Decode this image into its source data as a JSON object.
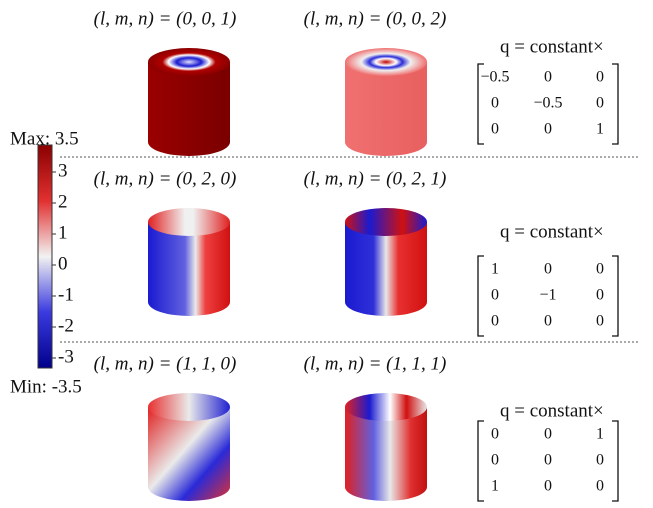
{
  "colorbar": {
    "max_label": "Max: 3.5",
    "min_label": "Min: -3.5",
    "ticks": [
      "3",
      "2",
      "1",
      "0",
      "-1",
      "-2",
      "-3"
    ]
  },
  "rows": [
    {
      "panels": [
        {
          "label": "(l, m, n) = (0, 0, 1)"
        },
        {
          "label": "(l, m, n) = (0, 0, 2)"
        }
      ],
      "q_label": "q = constant×",
      "matrix": [
        [
          "−0.5",
          "0",
          "0"
        ],
        [
          "0",
          "−0.5",
          "0"
        ],
        [
          "0",
          "0",
          "1"
        ]
      ]
    },
    {
      "panels": [
        {
          "label": "(l, m, n) = (0, 2, 0)"
        },
        {
          "label": "(l, m, n) = (0, 2, 1)"
        }
      ],
      "q_label": "q = constant×",
      "matrix": [
        [
          "1",
          "0",
          "0"
        ],
        [
          "0",
          "−1",
          "0"
        ],
        [
          "0",
          "0",
          "0"
        ]
      ]
    },
    {
      "panels": [
        {
          "label": "(l, m, n) = (1, 1, 0)"
        },
        {
          "label": "(l, m, n) = (1, 1, 1)"
        }
      ],
      "q_label": "q = constant×",
      "matrix": [
        [
          "0",
          "0",
          "1"
        ],
        [
          "0",
          "0",
          "0"
        ],
        [
          "1",
          "0",
          "0"
        ]
      ]
    }
  ]
}
